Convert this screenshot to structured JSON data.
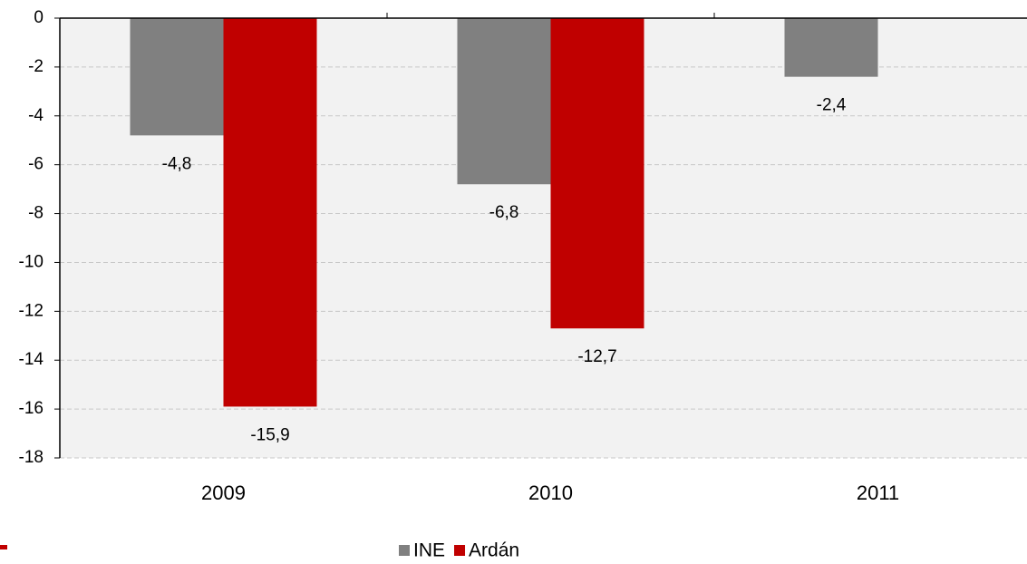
{
  "chart_data": {
    "type": "bar",
    "categories": [
      "2009",
      "2010",
      "2011"
    ],
    "series": [
      {
        "name": "INE",
        "color": "#808080",
        "values": [
          -4.8,
          -6.8,
          -2.4
        ],
        "value_labels": [
          "-4,8",
          "-6,8",
          "-2,4"
        ]
      },
      {
        "name": "Ardán",
        "color": "#c00000",
        "values": [
          -15.9,
          -12.7,
          null
        ],
        "value_labels": [
          "-15,9",
          "-12,7",
          null
        ]
      }
    ],
    "ylim": [
      0,
      -18
    ],
    "yticks": [
      0,
      -2,
      -4,
      -6,
      -8,
      -10,
      -12,
      -14,
      -16,
      -18
    ],
    "grid": true,
    "legend": "bottom"
  }
}
